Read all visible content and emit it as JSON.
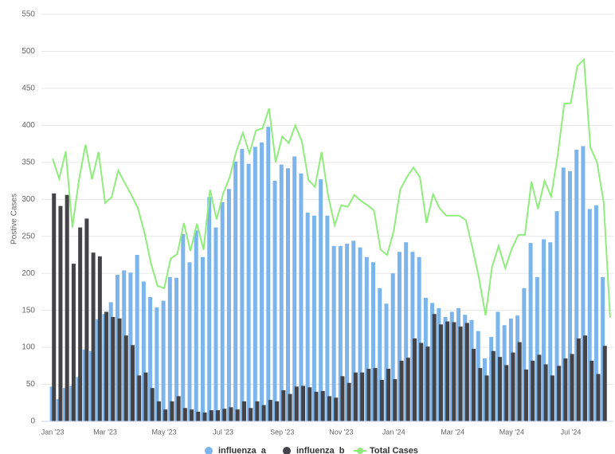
{
  "chart_data": {
    "type": "bar",
    "y_label": "Postive Cases",
    "ylim": [
      0,
      550
    ],
    "yticks": [
      0,
      50,
      100,
      150,
      200,
      250,
      300,
      350,
      400,
      450,
      500,
      550
    ],
    "grid": true,
    "categories": [
      "Jan '23",
      null,
      null,
      null,
      null,
      null,
      null,
      null,
      "Mar '23",
      null,
      null,
      null,
      null,
      null,
      null,
      null,
      null,
      "May '23",
      null,
      null,
      null,
      null,
      null,
      null,
      null,
      null,
      "Jul '23",
      null,
      null,
      null,
      null,
      null,
      null,
      null,
      null,
      "Sep '23",
      null,
      null,
      null,
      null,
      null,
      null,
      null,
      null,
      "Nov '23",
      null,
      null,
      null,
      null,
      null,
      null,
      null,
      "Jan '24",
      null,
      null,
      null,
      null,
      null,
      null,
      null,
      null,
      "Mar '24",
      null,
      null,
      null,
      null,
      null,
      null,
      null,
      null,
      "May '24",
      null,
      null,
      null,
      null,
      null,
      null,
      null,
      null,
      "Jul '24",
      null,
      null,
      null,
      null,
      null,
      null
    ],
    "series": [
      {
        "name": "influenza_a",
        "type": "bar",
        "color": "#7cb5ec",
        "values": [
          47,
          30,
          45,
          48,
          60,
          97,
          95,
          138,
          145,
          161,
          198,
          204,
          201,
          225,
          189,
          168,
          154,
          163,
          195,
          194,
          253,
          215,
          258,
          222,
          303,
          262,
          296,
          314,
          351,
          368,
          348,
          371,
          377,
          398,
          325,
          347,
          342,
          358,
          335,
          282,
          278,
          327,
          278,
          237,
          237,
          240,
          244,
          235,
          222,
          215,
          180,
          159,
          200,
          229,
          242,
          229,
          222,
          167,
          160,
          153,
          141,
          148,
          153,
          144,
          137,
          122,
          85,
          114,
          148,
          130,
          139,
          143,
          180,
          241,
          195,
          246,
          242,
          284,
          343,
          338,
          367,
          372,
          287,
          292,
          195,
          null
        ]
      },
      {
        "name": "influenza_b",
        "type": "bar",
        "color": "#434348",
        "values": [
          308,
          291,
          306,
          213,
          262,
          274,
          228,
          223,
          148,
          141,
          139,
          116,
          103,
          62,
          66,
          45,
          27,
          16,
          27,
          34,
          18,
          16,
          13,
          12,
          15,
          15,
          17,
          19,
          16,
          27,
          18,
          27,
          22,
          29,
          27,
          42,
          37,
          47,
          48,
          46,
          40,
          41,
          34,
          32,
          61,
          52,
          66,
          66,
          71,
          72,
          56,
          71,
          57,
          82,
          86,
          112,
          106,
          101,
          145,
          131,
          135,
          134,
          128,
          133,
          98,
          72,
          62,
          95,
          87,
          76,
          93,
          107,
          70,
          82,
          90,
          77,
          62,
          75,
          85,
          91,
          112,
          116,
          82,
          64,
          102,
          null
        ]
      },
      {
        "name": "Total Cases",
        "type": "line",
        "color": "#90ed7d",
        "values": [
          355,
          328,
          365,
          262,
          325,
          374,
          327,
          364,
          295,
          303,
          339,
          322,
          306,
          288,
          255,
          213,
          183,
          180,
          220,
          226,
          268,
          230,
          267,
          232,
          313,
          273,
          308,
          330,
          365,
          390,
          362,
          393,
          396,
          423,
          350,
          385,
          376,
          400,
          378,
          326,
          317,
          364,
          305,
          265,
          292,
          290,
          306,
          298,
          292,
          285,
          232,
          225,
          257,
          313,
          330,
          343,
          330,
          268,
          307,
          288,
          278,
          278,
          278,
          272,
          235,
          194,
          143,
          209,
          237,
          207,
          233,
          252,
          252,
          324,
          287,
          325,
          304,
          359,
          429,
          430,
          480,
          489,
          370,
          350,
          297,
          140
        ]
      }
    ]
  }
}
